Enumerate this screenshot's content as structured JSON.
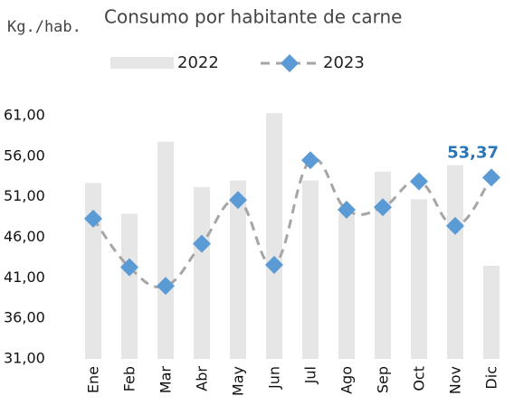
{
  "chart_data": {
    "type": "bar_line",
    "title": "Consumo por habitante de carne",
    "y_label": "Kg./hab.",
    "categories": [
      "Ene",
      "Feb",
      "Mar",
      "Abr",
      "May",
      "Jun",
      "Jul",
      "Ago",
      "Sep",
      "Oct",
      "Nov",
      "Dic"
    ],
    "series": [
      {
        "name": "2022",
        "type": "bar",
        "color": "#e6e6e6",
        "values": [
          52.7,
          48.9,
          57.8,
          52.2,
          53.0,
          61.3,
          53.0,
          49.0,
          54.1,
          50.7,
          54.9,
          42.5
        ]
      },
      {
        "name": "2023",
        "type": "line",
        "color": "#a6a6a6",
        "marker_color": "#5b9bd5",
        "values": [
          48.3,
          42.3,
          40.0,
          45.2,
          50.6,
          42.6,
          55.5,
          49.4,
          49.7,
          52.9,
          47.4,
          53.37
        ],
        "value_labels": [
          null,
          null,
          null,
          null,
          null,
          null,
          null,
          null,
          null,
          null,
          null,
          "53,37"
        ],
        "label_color": "#2e75b6"
      }
    ],
    "ylim": [
      31,
      63
    ],
    "yticks": [
      {
        "value": 31,
        "label": "31,00"
      },
      {
        "value": 36,
        "label": "36,00"
      },
      {
        "value": 41,
        "label": "41,00"
      },
      {
        "value": 46,
        "label": "46,00"
      },
      {
        "value": 51,
        "label": "51,00"
      },
      {
        "value": 56,
        "label": "56,00"
      },
      {
        "value": 61,
        "label": "61,00"
      }
    ],
    "legend": "top"
  }
}
